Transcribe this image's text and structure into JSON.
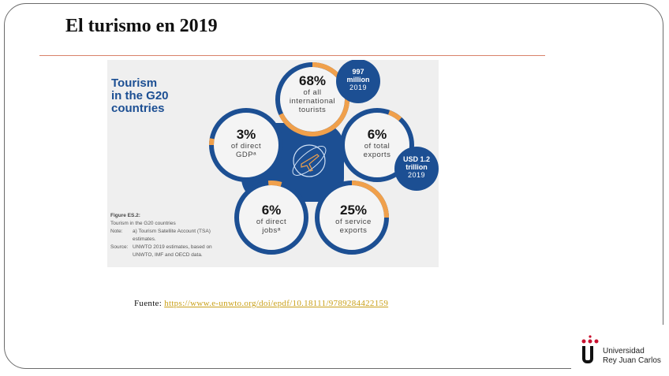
{
  "slide": {
    "title": "El turismo en 2019",
    "accent_color": "#d9826a"
  },
  "figure": {
    "heading_lines": [
      "Tourism",
      "in the G20",
      "countries"
    ],
    "colors": {
      "blue": "#1c4f93",
      "orange": "#f0a04b",
      "background": "#efefef"
    },
    "center_icon": "airplane-globe-icon",
    "stats": [
      {
        "id": "tourists",
        "value": "68%",
        "desc_lines": [
          "of all",
          "international",
          "tourists"
        ],
        "fraction": 0.68
      },
      {
        "id": "gdp",
        "value": "3%",
        "desc_lines": [
          "of direct",
          "GDPᵃ"
        ],
        "fraction": 0.03
      },
      {
        "id": "exports",
        "value": "6%",
        "desc_lines": [
          "of total",
          "exports"
        ],
        "fraction": 0.06
      },
      {
        "id": "jobs",
        "value": "6%",
        "desc_lines": [
          "of direct",
          "jobsᵃ"
        ],
        "fraction": 0.06
      },
      {
        "id": "service",
        "value": "25%",
        "desc_lines": [
          "of service",
          "exports"
        ],
        "fraction": 0.25
      }
    ],
    "badges": [
      {
        "id": "tourists-badge",
        "lines": [
          "997",
          "million"
        ],
        "year": "2019"
      },
      {
        "id": "exports-badge",
        "lines": [
          "USD 1.2",
          "trillion"
        ],
        "year": "2019"
      }
    ],
    "caption": {
      "heading": "Figure ES.2:",
      "subtitle": "Tourism in the G20 countries",
      "note_label": "Note:",
      "note_text": "a) Tourism Satellite Account (TSA) estimates.",
      "source_label": "Source:",
      "source_text": "UNWTO 2019 estimates, based on UNWTO, IMF and OECD data."
    }
  },
  "source_line": {
    "label": "Fuente:",
    "link_text": "https://www.e-unwto.org/doi/epdf/10.18111/9789284422159"
  },
  "logo": {
    "line1": "Universidad",
    "line2": "Rey Juan Carlos",
    "dot_color": "#c8102e"
  }
}
